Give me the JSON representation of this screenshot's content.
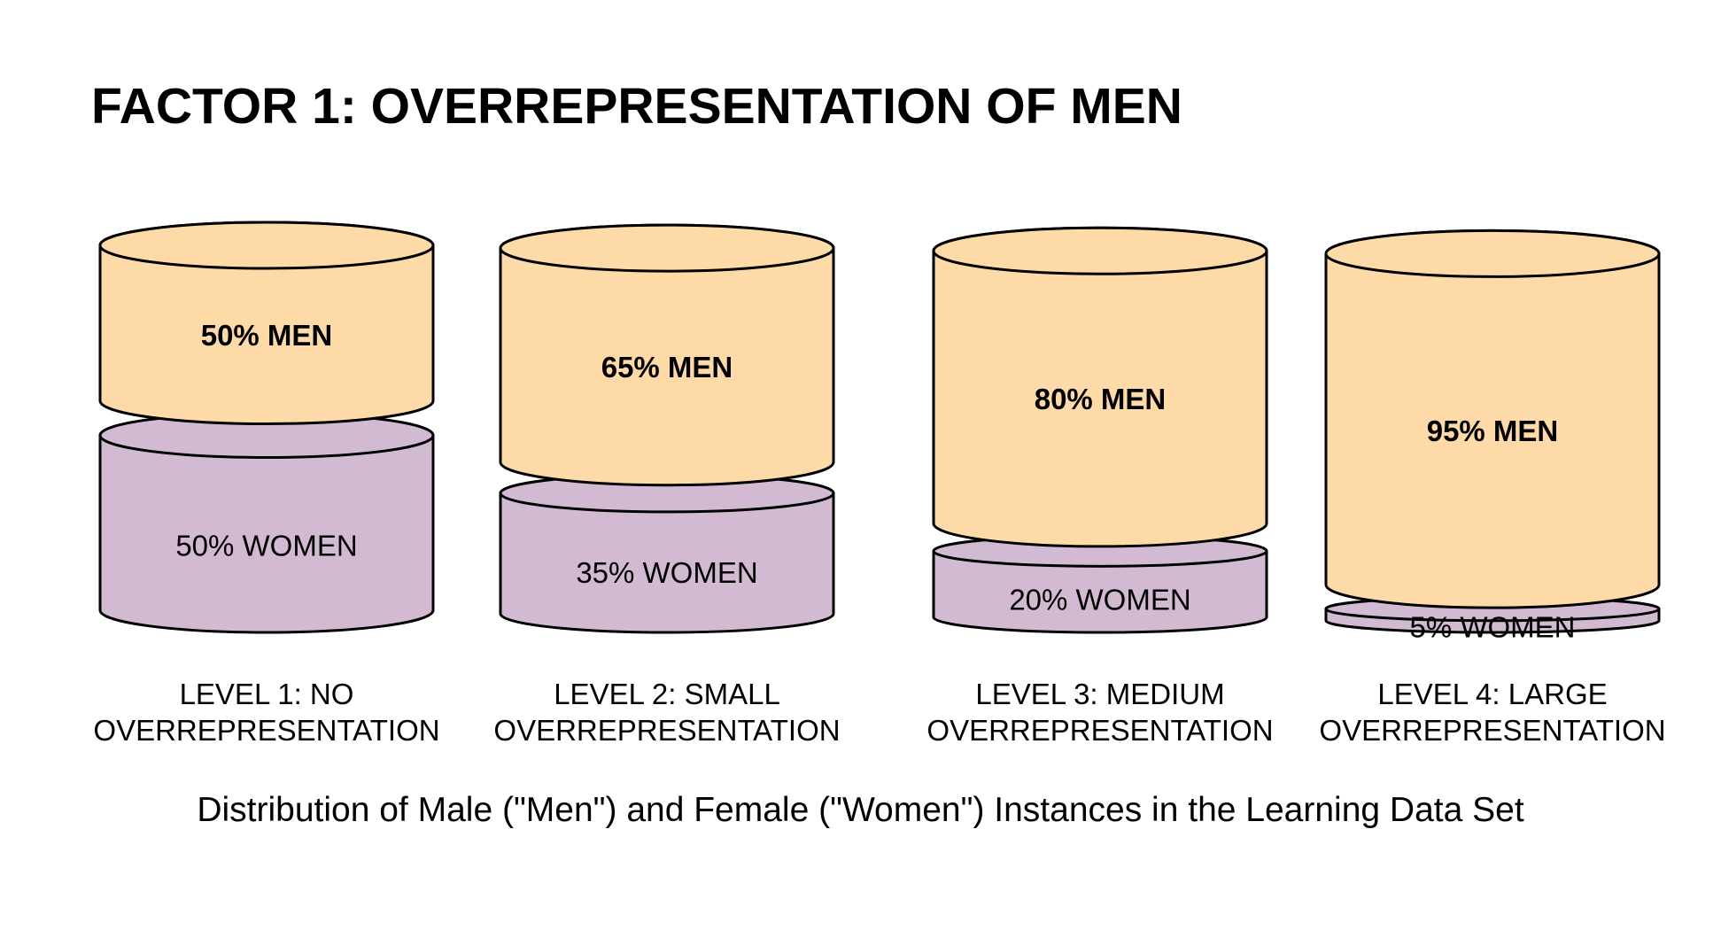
{
  "title": "FACTOR 1: OVERREPRESENTATION OF MEN",
  "caption": "Distribution of Male (\"Men\") and Female (\"Women\") Instances in the Learning Data Set",
  "colors": {
    "men": "#fddaa8",
    "women": "#d2bbd2",
    "stroke": "#000000"
  },
  "levels": [
    {
      "line1": "LEVEL 1: NO",
      "line2": "OVERREPRESENTATION",
      "men_pct": 50,
      "women_pct": 50,
      "men_label": "50% MEN",
      "women_label": "50% WOMEN"
    },
    {
      "line1": "LEVEL 2: SMALL",
      "line2": "OVERREPRESENTATION",
      "men_pct": 65,
      "women_pct": 35,
      "men_label": "65% MEN",
      "women_label": "35% WOMEN"
    },
    {
      "line1": "LEVEL 3: MEDIUM",
      "line2": "OVERREPRESENTATION",
      "men_pct": 80,
      "women_pct": 20,
      "men_label": "80% MEN",
      "women_label": "20% WOMEN"
    },
    {
      "line1": "LEVEL 4: LARGE",
      "line2": "OVERREPRESENTATION",
      "men_pct": 95,
      "women_pct": 5,
      "men_label": "95% MEN",
      "women_label": "5% WOMEN"
    }
  ]
}
